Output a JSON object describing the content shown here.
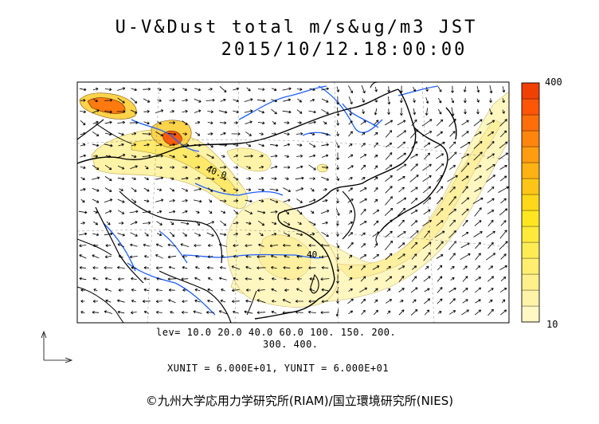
{
  "title": {
    "line1": "U-V&Dust total m/s&ug/m3 JST",
    "line2": "2015/10/12.18:00:00"
  },
  "colorbar": {
    "max_label": "400",
    "min_label": "10",
    "colors": [
      "#fff7c4",
      "#fff3a8",
      "#fff08c",
      "#ffee70",
      "#ffec55",
      "#ffe93a",
      "#ffe620",
      "#ffd81a",
      "#ffc516",
      "#ffb213",
      "#ff9c10",
      "#ff850d",
      "#ff6e0a",
      "#ff5507",
      "#f04004"
    ]
  },
  "levels": {
    "line1": "lev= 10.0 20.0 40.0 60.0 100. 150. 200.",
    "line2": "300. 400."
  },
  "units": {
    "line": "XUNIT = 6.000E+01, YUNIT = 6.000E+01"
  },
  "contour_labels": [
    "40.0",
    "40."
  ],
  "copyright": "©九州大学応用力学研究所(RIAM)/国立環境研究所(NIES)",
  "colors": {
    "dust_low": "#fff3a8",
    "dust_mid": "#ffe620",
    "dust_high": "#ff6e0a",
    "river": "#1f5fff",
    "coast": "#000000"
  }
}
